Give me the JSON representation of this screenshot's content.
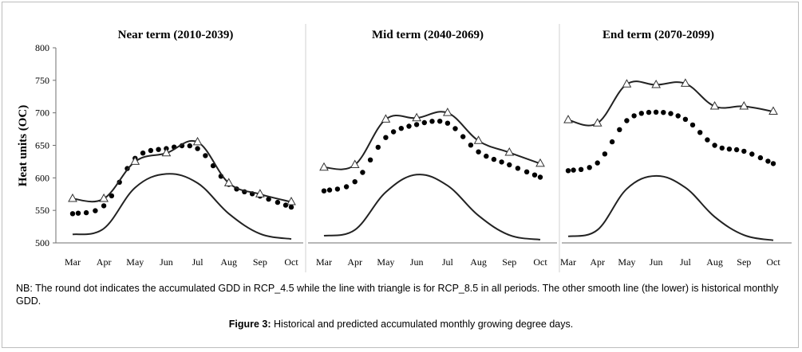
{
  "chart_data": {
    "type": "line",
    "ylabel": "Heat units (OC)",
    "ylim": [
      500,
      800
    ],
    "yticks": [
      500,
      550,
      600,
      650,
      700,
      750,
      800
    ],
    "categories": [
      "Mar",
      "Apr",
      "May",
      "Jun",
      "Jul",
      "Aug",
      "Sep",
      "Oct"
    ],
    "panels": [
      {
        "title": "Near term (2010-2039)",
        "series": [
          {
            "key": "rcp45",
            "marker": "dot",
            "values": [
              545,
              557,
              630,
              645,
              645,
              590,
              572,
              555
            ]
          },
          {
            "key": "rcp85",
            "marker": "triangle",
            "values": [
              568,
              568,
              625,
              638,
              655,
              592,
              575,
              563
            ]
          },
          {
            "key": "historical",
            "marker": "none",
            "values": [
              513,
              522,
              585,
              606,
              592,
              545,
              514,
              506
            ]
          }
        ]
      },
      {
        "title": "Mid term (2040-2069)",
        "series": [
          {
            "key": "rcp45",
            "marker": "dot",
            "values": [
              580,
              594,
              662,
              682,
              684,
              640,
              620,
              601
            ]
          },
          {
            "key": "rcp85",
            "marker": "triangle",
            "values": [
              616,
              620,
              690,
              692,
              700,
              657,
              639,
              622
            ]
          },
          {
            "key": "historical",
            "marker": "none",
            "values": [
              511,
              520,
              578,
              605,
              588,
              542,
              512,
              505
            ]
          }
        ]
      },
      {
        "title": "End term (2070-2099)",
        "series": [
          {
            "key": "rcp45",
            "marker": "dot",
            "values": [
              611,
              623,
              688,
              701,
              690,
              650,
              641,
              622
            ]
          },
          {
            "key": "rcp85",
            "marker": "triangle",
            "values": [
              689,
              684,
              744,
              743,
              745,
              710,
              710,
              702
            ]
          },
          {
            "key": "historical",
            "marker": "none",
            "values": [
              510,
              520,
              583,
              603,
              585,
              540,
              512,
              504
            ]
          }
        ]
      }
    ]
  },
  "note": "NB: The round dot indicates the accumulated GDD in RCP_4.5 while the line with triangle is for RCP_8.5 in all periods. The other smooth line (the lower) is historical monthly GDD.",
  "caption": {
    "label": "Figure 3:",
    "text": " Historical and predicted accumulated monthly growing degree days."
  }
}
